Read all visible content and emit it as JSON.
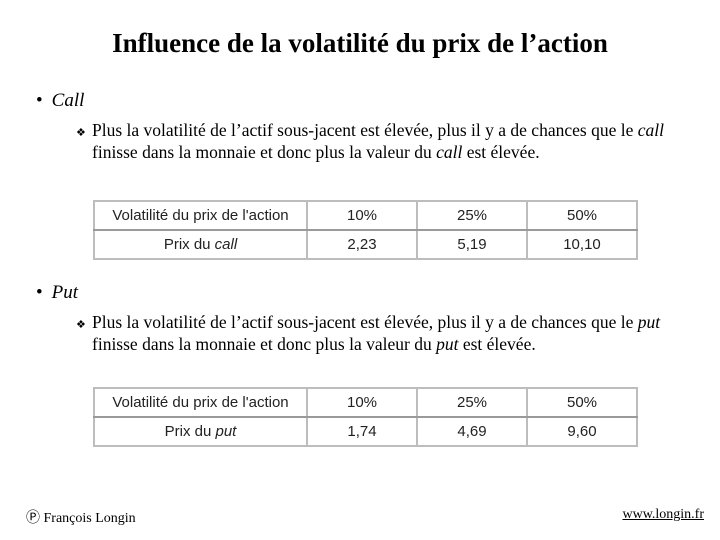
{
  "title": "Influence de la volatilité du prix de l’action",
  "call": {
    "heading": "Call",
    "text_a": "Plus la volatilité de l’actif sous-jacent est élevée, plus il y a de chances que le ",
    "text_em1": "call",
    "text_b": " finisse dans la monnaie et donc plus la valeur du ",
    "text_em2": "call",
    "text_c": " est élevée.",
    "table": {
      "row1_label": "Volatilité du prix de l'action",
      "row1_values": [
        "10%",
        "25%",
        "50%"
      ],
      "row2_label_prefix": "Prix du ",
      "row2_label_em": "call",
      "row2_values": [
        "2,23",
        "5,19",
        "10,10"
      ]
    }
  },
  "put": {
    "heading": "Put",
    "text_a": "Plus la volatilité de l’actif sous-jacent est élevée, plus il y a de chances que le ",
    "text_em1": "put",
    "text_b": " finisse dans la monnaie et donc plus la valeur du ",
    "text_em2": "put",
    "text_c": " est élevée.",
    "table": {
      "row1_label": "Volatilité du prix de l'action",
      "row1_values": [
        "10%",
        "25%",
        "50%"
      ],
      "row2_label_prefix": "Prix du ",
      "row2_label_em": "put",
      "row2_values": [
        "1,74",
        "4,69",
        "9,60"
      ]
    }
  },
  "footer": {
    "author": "Ⓟ François Longin",
    "url": "www.longin.fr"
  }
}
